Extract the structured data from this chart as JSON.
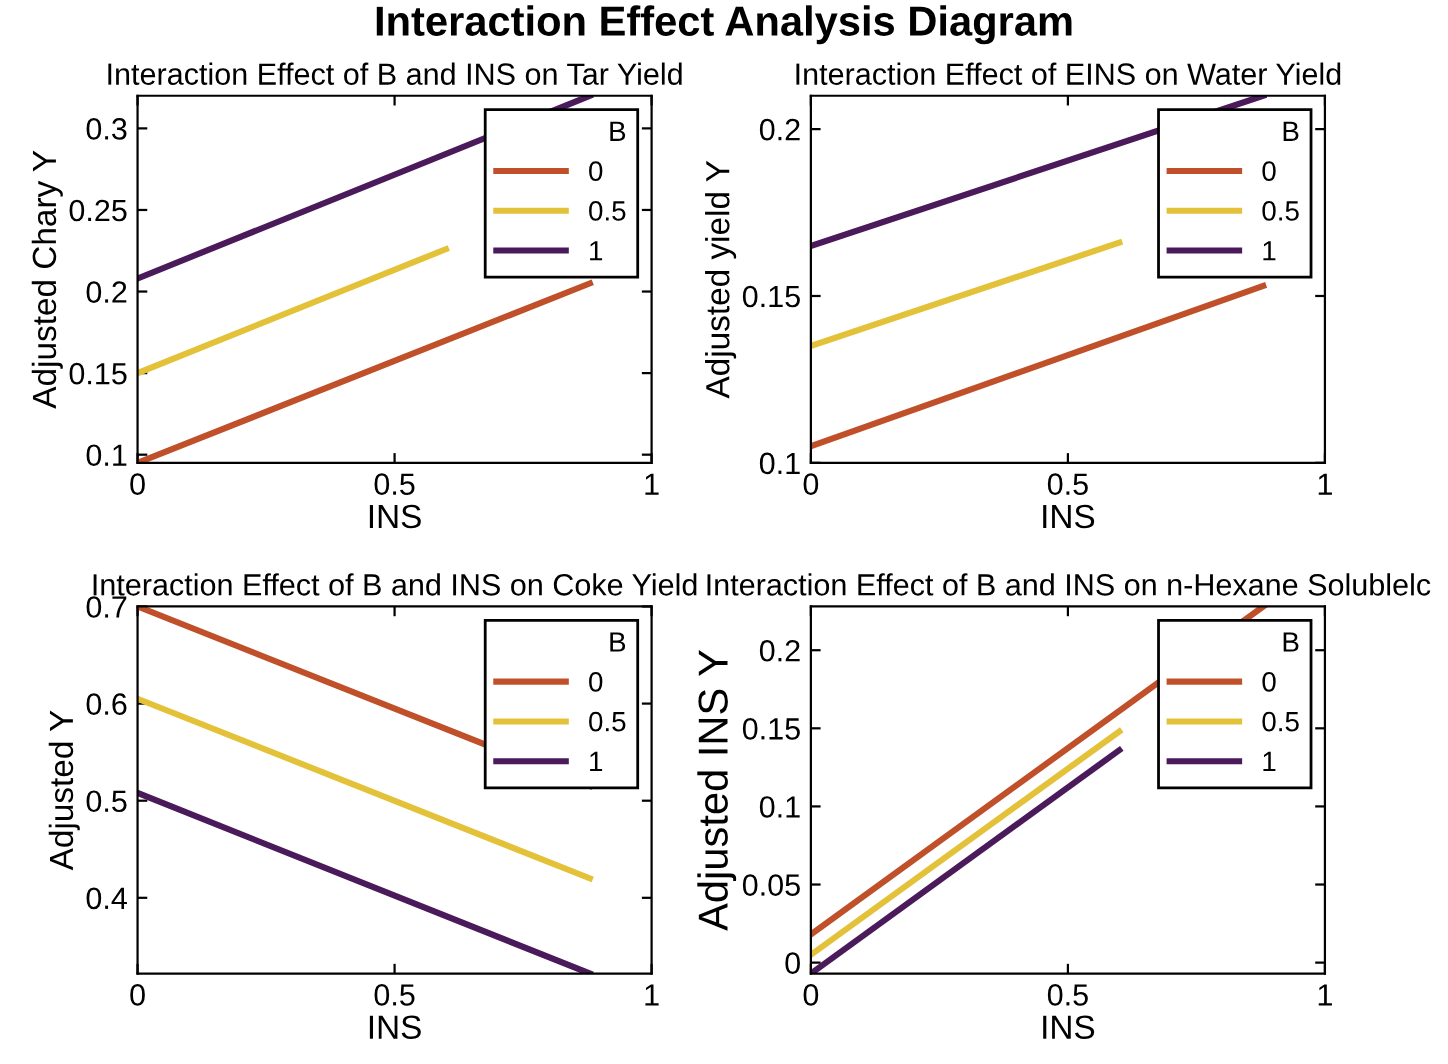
{
  "chart_data": [
    {
      "type": "line",
      "title": "Interaction Effect of B and INS on Tar Yield",
      "xlabel": "INS",
      "ylabel": "Adjusted Chary Y",
      "legend_title": "B",
      "legend": "top right",
      "grid": false,
      "xlim": [
        0,
        1
      ],
      "xticks": [
        0,
        0.5,
        1
      ],
      "ylim": [
        0.095,
        0.32
      ],
      "yticks": [
        0.1,
        0.15,
        0.2,
        0.25,
        0.3
      ],
      "annotations": [
        "Interaction Effect Analysis Diagram"
      ],
      "series": [
        {
          "name": "0",
          "color": "#c0502a",
          "x": [
            0,
            0.88
          ],
          "values": [
            0.095,
            0.205
          ]
        },
        {
          "name": "0.5",
          "color": "#e3c23a",
          "x": [
            0,
            0.6
          ],
          "values": [
            0.15,
            0.226
          ]
        },
        {
          "name": "1",
          "color": "#4a1a5a",
          "x": [
            0,
            0.88
          ],
          "values": [
            0.208,
            0.32
          ]
        }
      ]
    },
    {
      "type": "line",
      "title": "Interaction Effect of EINS on Water Yield",
      "xlabel": "INS",
      "ylabel": "Adjusted yield Y",
      "legend_title": "B",
      "legend": "top right",
      "grid": false,
      "xlim": [
        0,
        1
      ],
      "xticks": [
        0,
        0.5,
        1
      ],
      "ylim": [
        0.1,
        0.21
      ],
      "yticks": [
        0.1,
        0.15,
        0.2
      ],
      "series": [
        {
          "name": "0",
          "color": "#c0502a",
          "x": [
            0,
            0.88
          ],
          "values": [
            0.105,
            0.153
          ]
        },
        {
          "name": "0.5",
          "color": "#e3c23a",
          "x": [
            0,
            0.6
          ],
          "values": [
            0.135,
            0.166
          ]
        },
        {
          "name": "1",
          "color": "#4a1a5a",
          "x": [
            0,
            0.88
          ],
          "values": [
            0.165,
            0.21
          ]
        }
      ]
    },
    {
      "type": "line",
      "title": "Interaction Effect of B and INS on Coke Yield",
      "xlabel": "INS",
      "ylabel": "Adjusted Y",
      "legend_title": "B",
      "legend": "top right",
      "grid": false,
      "xlim": [
        0,
        1
      ],
      "xticks": [
        0,
        0.5,
        1
      ],
      "ylim": [
        0.322,
        0.7
      ],
      "yticks": [
        0.4,
        0.5,
        0.6,
        0.7
      ],
      "series": [
        {
          "name": "0",
          "color": "#c0502a",
          "x": [
            0,
            0.88
          ],
          "values": [
            0.7,
            0.515
          ]
        },
        {
          "name": "0.5",
          "color": "#e3c23a",
          "x": [
            0,
            0.88
          ],
          "values": [
            0.605,
            0.42
          ]
        },
        {
          "name": "1",
          "color": "#4a1a5a",
          "x": [
            0,
            0.88
          ],
          "values": [
            0.508,
            0.322
          ]
        }
      ]
    },
    {
      "type": "line",
      "title": "Interaction Effect of B and INS on n-Hexane Solublelc",
      "xlabel": "INS",
      "ylabel": "Adjusted INS Y",
      "legend_title": "B",
      "legend": "top right",
      "grid": false,
      "xlim": [
        0,
        1
      ],
      "xticks": [
        0,
        0.5,
        1
      ],
      "ylim": [
        -0.007,
        0.228
      ],
      "yticks": [
        0,
        0.05,
        0.1,
        0.15,
        0.2
      ],
      "series": [
        {
          "name": "0",
          "color": "#c0502a",
          "x": [
            0,
            0.88
          ],
          "values": [
            0.018,
            0.228
          ]
        },
        {
          "name": "0.5",
          "color": "#e3c23a",
          "x": [
            0,
            0.6
          ],
          "values": [
            0.005,
            0.148
          ]
        },
        {
          "name": "1",
          "color": "#4a1a5a",
          "x": [
            0,
            0.6
          ],
          "values": [
            -0.007,
            0.136
          ]
        }
      ]
    }
  ]
}
